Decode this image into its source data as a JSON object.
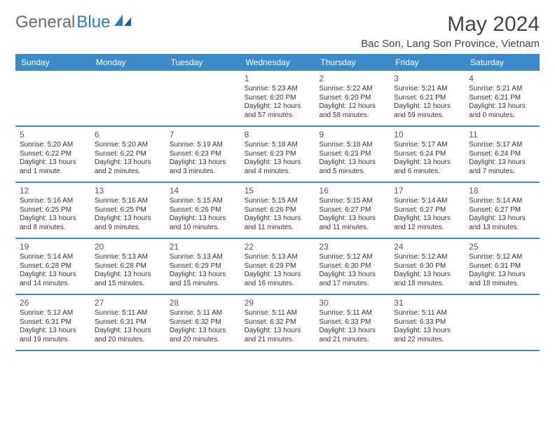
{
  "logo": {
    "general": "General",
    "blue": "Blue"
  },
  "title": "May 2024",
  "location": "Bac Son, Lang Son Province, Vietnam",
  "colors": {
    "header_bg": "#3b8bc9",
    "header_text": "#ffffff",
    "row_border": "#3b8bc9",
    "logo_gray": "#6b6b6b",
    "logo_blue": "#2a7bbf",
    "text": "#333333",
    "daynum": "#555555",
    "background": "#ffffff"
  },
  "typography": {
    "title_fontsize": 30,
    "location_fontsize": 15,
    "dayheader_fontsize": 12,
    "daynum_fontsize": 12,
    "detail_fontsize": 10
  },
  "day_names": [
    "Sunday",
    "Monday",
    "Tuesday",
    "Wednesday",
    "Thursday",
    "Friday",
    "Saturday"
  ],
  "weeks": [
    [
      {
        "blank": true
      },
      {
        "blank": true
      },
      {
        "blank": true
      },
      {
        "n": "1",
        "sr": "Sunrise: 5:23 AM",
        "ss": "Sunset: 6:20 PM",
        "d1": "Daylight: 12 hours",
        "d2": "and 57 minutes."
      },
      {
        "n": "2",
        "sr": "Sunrise: 5:22 AM",
        "ss": "Sunset: 6:20 PM",
        "d1": "Daylight: 12 hours",
        "d2": "and 58 minutes."
      },
      {
        "n": "3",
        "sr": "Sunrise: 5:21 AM",
        "ss": "Sunset: 6:21 PM",
        "d1": "Daylight: 12 hours",
        "d2": "and 59 minutes."
      },
      {
        "n": "4",
        "sr": "Sunrise: 5:21 AM",
        "ss": "Sunset: 6:21 PM",
        "d1": "Daylight: 13 hours",
        "d2": "and 0 minutes."
      }
    ],
    [
      {
        "n": "5",
        "sr": "Sunrise: 5:20 AM",
        "ss": "Sunset: 6:22 PM",
        "d1": "Daylight: 13 hours",
        "d2": "and 1 minute."
      },
      {
        "n": "6",
        "sr": "Sunrise: 5:20 AM",
        "ss": "Sunset: 6:22 PM",
        "d1": "Daylight: 13 hours",
        "d2": "and 2 minutes."
      },
      {
        "n": "7",
        "sr": "Sunrise: 5:19 AM",
        "ss": "Sunset: 6:23 PM",
        "d1": "Daylight: 13 hours",
        "d2": "and 3 minutes."
      },
      {
        "n": "8",
        "sr": "Sunrise: 5:18 AM",
        "ss": "Sunset: 6:23 PM",
        "d1": "Daylight: 13 hours",
        "d2": "and 4 minutes."
      },
      {
        "n": "9",
        "sr": "Sunrise: 5:18 AM",
        "ss": "Sunset: 6:23 PM",
        "d1": "Daylight: 13 hours",
        "d2": "and 5 minutes."
      },
      {
        "n": "10",
        "sr": "Sunrise: 5:17 AM",
        "ss": "Sunset: 6:24 PM",
        "d1": "Daylight: 13 hours",
        "d2": "and 6 minutes."
      },
      {
        "n": "11",
        "sr": "Sunrise: 5:17 AM",
        "ss": "Sunset: 6:24 PM",
        "d1": "Daylight: 13 hours",
        "d2": "and 7 minutes."
      }
    ],
    [
      {
        "n": "12",
        "sr": "Sunrise: 5:16 AM",
        "ss": "Sunset: 6:25 PM",
        "d1": "Daylight: 13 hours",
        "d2": "and 8 minutes."
      },
      {
        "n": "13",
        "sr": "Sunrise: 5:16 AM",
        "ss": "Sunset: 6:25 PM",
        "d1": "Daylight: 13 hours",
        "d2": "and 9 minutes."
      },
      {
        "n": "14",
        "sr": "Sunrise: 5:15 AM",
        "ss": "Sunset: 6:26 PM",
        "d1": "Daylight: 13 hours",
        "d2": "and 10 minutes."
      },
      {
        "n": "15",
        "sr": "Sunrise: 5:15 AM",
        "ss": "Sunset: 6:26 PM",
        "d1": "Daylight: 13 hours",
        "d2": "and 11 minutes."
      },
      {
        "n": "16",
        "sr": "Sunrise: 5:15 AM",
        "ss": "Sunset: 6:27 PM",
        "d1": "Daylight: 13 hours",
        "d2": "and 11 minutes."
      },
      {
        "n": "17",
        "sr": "Sunrise: 5:14 AM",
        "ss": "Sunset: 6:27 PM",
        "d1": "Daylight: 13 hours",
        "d2": "and 12 minutes."
      },
      {
        "n": "18",
        "sr": "Sunrise: 5:14 AM",
        "ss": "Sunset: 6:27 PM",
        "d1": "Daylight: 13 hours",
        "d2": "and 13 minutes."
      }
    ],
    [
      {
        "n": "19",
        "sr": "Sunrise: 5:14 AM",
        "ss": "Sunset: 6:28 PM",
        "d1": "Daylight: 13 hours",
        "d2": "and 14 minutes."
      },
      {
        "n": "20",
        "sr": "Sunrise: 5:13 AM",
        "ss": "Sunset: 6:28 PM",
        "d1": "Daylight: 13 hours",
        "d2": "and 15 minutes."
      },
      {
        "n": "21",
        "sr": "Sunrise: 5:13 AM",
        "ss": "Sunset: 6:29 PM",
        "d1": "Daylight: 13 hours",
        "d2": "and 15 minutes."
      },
      {
        "n": "22",
        "sr": "Sunrise: 5:13 AM",
        "ss": "Sunset: 6:29 PM",
        "d1": "Daylight: 13 hours",
        "d2": "and 16 minutes."
      },
      {
        "n": "23",
        "sr": "Sunrise: 5:12 AM",
        "ss": "Sunset: 6:30 PM",
        "d1": "Daylight: 13 hours",
        "d2": "and 17 minutes."
      },
      {
        "n": "24",
        "sr": "Sunrise: 5:12 AM",
        "ss": "Sunset: 6:30 PM",
        "d1": "Daylight: 13 hours",
        "d2": "and 18 minutes."
      },
      {
        "n": "25",
        "sr": "Sunrise: 5:12 AM",
        "ss": "Sunset: 6:31 PM",
        "d1": "Daylight: 13 hours",
        "d2": "and 18 minutes."
      }
    ],
    [
      {
        "n": "26",
        "sr": "Sunrise: 5:12 AM",
        "ss": "Sunset: 6:31 PM",
        "d1": "Daylight: 13 hours",
        "d2": "and 19 minutes."
      },
      {
        "n": "27",
        "sr": "Sunrise: 5:11 AM",
        "ss": "Sunset: 6:31 PM",
        "d1": "Daylight: 13 hours",
        "d2": "and 20 minutes."
      },
      {
        "n": "28",
        "sr": "Sunrise: 5:11 AM",
        "ss": "Sunset: 6:32 PM",
        "d1": "Daylight: 13 hours",
        "d2": "and 20 minutes."
      },
      {
        "n": "29",
        "sr": "Sunrise: 5:11 AM",
        "ss": "Sunset: 6:32 PM",
        "d1": "Daylight: 13 hours",
        "d2": "and 21 minutes."
      },
      {
        "n": "30",
        "sr": "Sunrise: 5:11 AM",
        "ss": "Sunset: 6:33 PM",
        "d1": "Daylight: 13 hours",
        "d2": "and 21 minutes."
      },
      {
        "n": "31",
        "sr": "Sunrise: 5:11 AM",
        "ss": "Sunset: 6:33 PM",
        "d1": "Daylight: 13 hours",
        "d2": "and 22 minutes."
      },
      {
        "blank": true
      }
    ]
  ]
}
